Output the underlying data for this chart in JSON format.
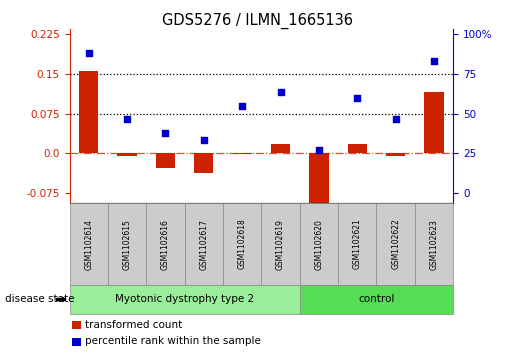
{
  "title": "GDS5276 / ILMN_1665136",
  "samples": [
    "GSM1102614",
    "GSM1102615",
    "GSM1102616",
    "GSM1102617",
    "GSM1102618",
    "GSM1102619",
    "GSM1102620",
    "GSM1102621",
    "GSM1102622",
    "GSM1102623"
  ],
  "bar_values": [
    0.155,
    -0.005,
    -0.028,
    -0.038,
    -0.002,
    0.018,
    -0.095,
    0.018,
    -0.005,
    0.115
  ],
  "scatter_values": [
    0.19,
    0.065,
    0.038,
    0.025,
    0.09,
    0.115,
    0.005,
    0.105,
    0.065,
    0.175
  ],
  "ylim_left": [
    -0.095,
    0.235
  ],
  "yticks_left": [
    -0.075,
    0.0,
    0.075,
    0.15,
    0.225
  ],
  "ytick_labels_right": [
    "0",
    "25",
    "50",
    "75",
    "100%"
  ],
  "hlines": [
    0.075,
    0.15
  ],
  "bar_color": "#cc2200",
  "scatter_color": "#0000cc",
  "disease_groups": [
    {
      "label": "Myotonic dystrophy type 2",
      "start": 0,
      "end": 6,
      "color": "#99ee99"
    },
    {
      "label": "control",
      "start": 6,
      "end": 10,
      "color": "#55dd55"
    }
  ],
  "legend_items": [
    {
      "color": "#cc2200",
      "label": "transformed count"
    },
    {
      "color": "#0000cc",
      "label": "percentile rank within the sample"
    }
  ],
  "disease_state_label": "disease state",
  "left_axis_color": "#cc2200",
  "right_axis_color": "#0000cc",
  "bar_width": 0.5,
  "sample_box_color": "#cccccc",
  "box_edge_color": "#888888"
}
